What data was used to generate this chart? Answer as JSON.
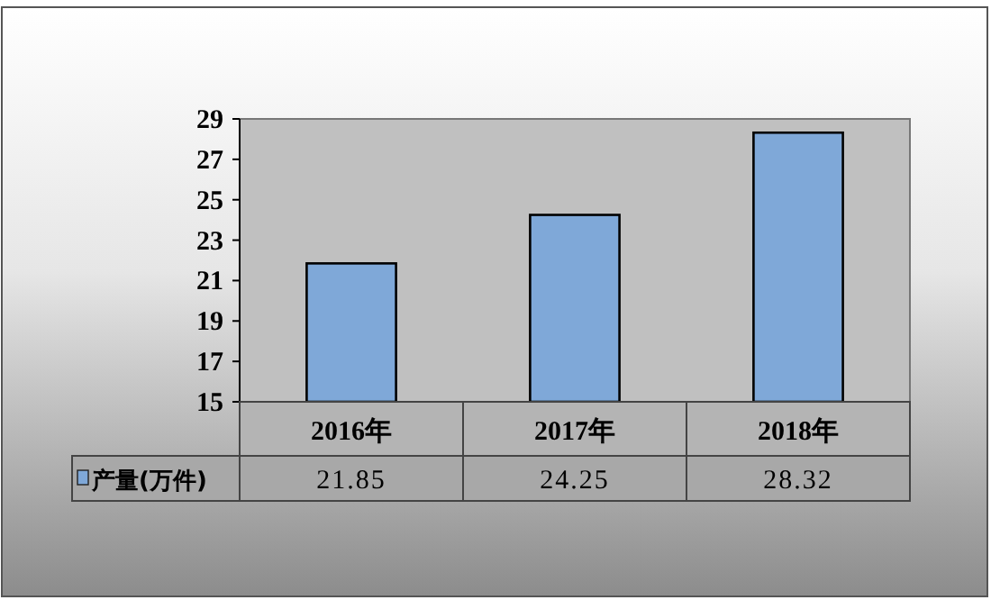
{
  "chart_data": {
    "type": "bar",
    "categories": [
      "2016年",
      "2017年",
      "2018年"
    ],
    "series": [
      {
        "name": "产量(万件)",
        "color": "#7fa8d8",
        "values": [
          21.85,
          24.25,
          28.32
        ]
      }
    ],
    "ylim": [
      15,
      29
    ],
    "yticks": [
      15,
      17,
      19,
      21,
      23,
      25,
      27,
      29
    ],
    "data_labels": true,
    "grid": false
  }
}
